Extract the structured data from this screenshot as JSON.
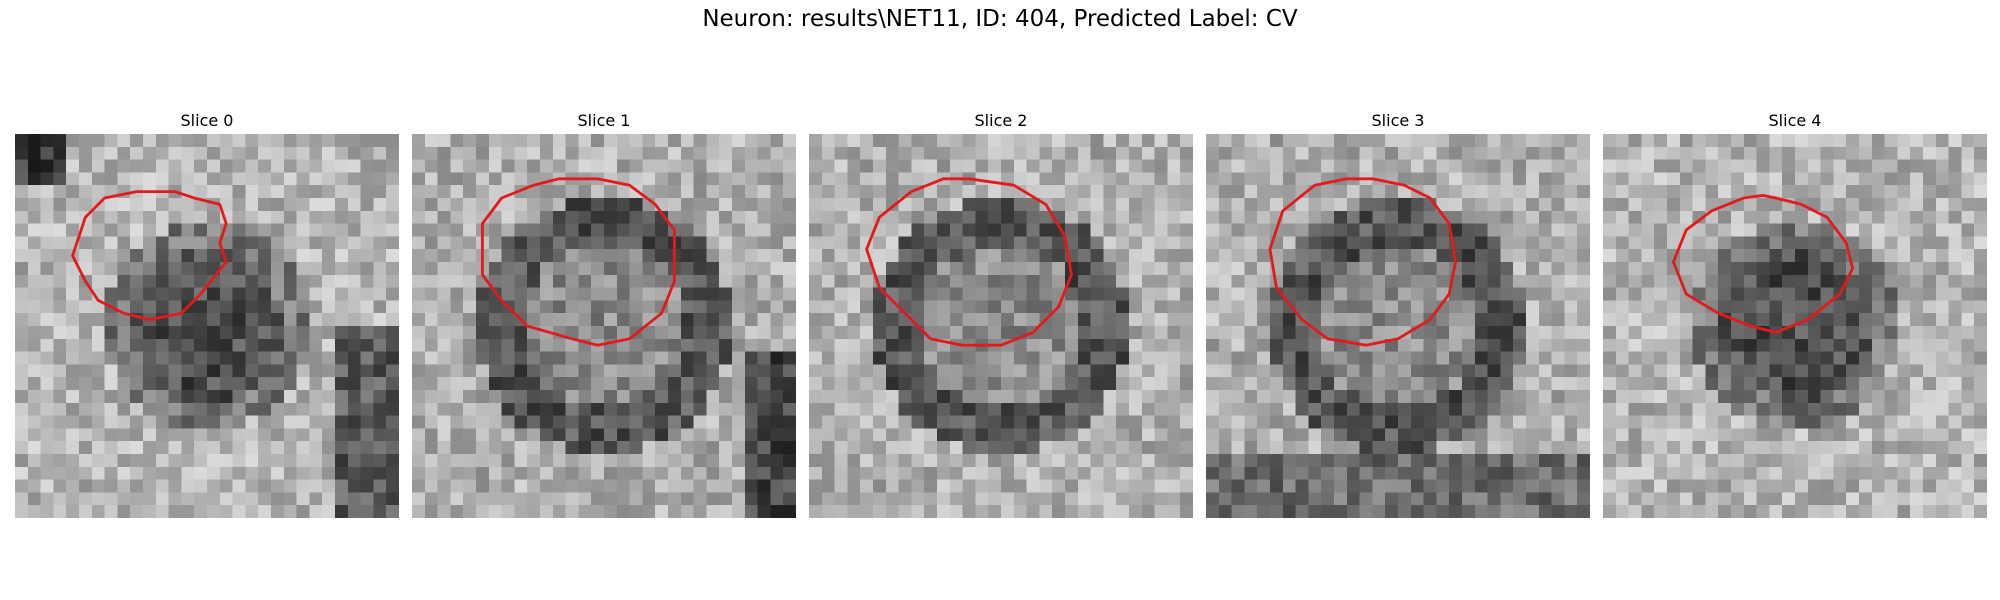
{
  "figure": {
    "title": "Neuron: results\\NET11, ID: 404, Predicted Label: CV"
  },
  "colors": {
    "contour": "#e31a1c",
    "background": "#ffffff"
  },
  "panels": [
    {
      "title": "Slice 0",
      "style": "dark-blob",
      "contour": [
        [
          12.5,
          4.5
        ],
        [
          14.0,
          5.0
        ],
        [
          16.0,
          5.5
        ],
        [
          16.5,
          7.0
        ],
        [
          16.0,
          8.5
        ],
        [
          16.5,
          10.0
        ],
        [
          14.5,
          12.5
        ],
        [
          13.0,
          14.0
        ],
        [
          10.5,
          14.5
        ],
        [
          8.5,
          14.0
        ],
        [
          6.5,
          13.0
        ],
        [
          5.5,
          11.5
        ],
        [
          4.5,
          9.5
        ],
        [
          5.5,
          6.5
        ],
        [
          7.0,
          5.0
        ],
        [
          9.5,
          4.5
        ]
      ]
    },
    {
      "title": "Slice 1",
      "style": "ring",
      "contour": [
        [
          14.5,
          3.5
        ],
        [
          17.0,
          4.0
        ],
        [
          19.0,
          5.5
        ],
        [
          20.5,
          7.5
        ],
        [
          20.5,
          11.5
        ],
        [
          19.5,
          14.0
        ],
        [
          17.0,
          16.0
        ],
        [
          14.5,
          16.5
        ],
        [
          12.5,
          16.0
        ],
        [
          9.0,
          15.0
        ],
        [
          7.0,
          13.0
        ],
        [
          5.5,
          11.0
        ],
        [
          5.5,
          7.0
        ],
        [
          7.0,
          5.0
        ],
        [
          9.5,
          4.0
        ],
        [
          11.5,
          3.5
        ]
      ]
    },
    {
      "title": "Slice 2",
      "style": "ring",
      "contour": [
        [
          12.5,
          3.5
        ],
        [
          16.0,
          4.0
        ],
        [
          18.5,
          5.5
        ],
        [
          20.0,
          8.0
        ],
        [
          20.5,
          11.0
        ],
        [
          19.5,
          13.5
        ],
        [
          17.5,
          15.5
        ],
        [
          15.0,
          16.5
        ],
        [
          12.0,
          16.5
        ],
        [
          9.5,
          16.0
        ],
        [
          7.5,
          14.0
        ],
        [
          5.5,
          12.0
        ],
        [
          4.5,
          9.0
        ],
        [
          5.5,
          6.5
        ],
        [
          8.0,
          4.5
        ],
        [
          10.5,
          3.5
        ]
      ]
    },
    {
      "title": "Slice 3",
      "style": "ring",
      "contour": [
        [
          13.0,
          3.5
        ],
        [
          15.5,
          4.0
        ],
        [
          17.5,
          5.0
        ],
        [
          19.0,
          7.0
        ],
        [
          19.5,
          10.0
        ],
        [
          19.0,
          12.5
        ],
        [
          17.5,
          14.5
        ],
        [
          15.0,
          16.0
        ],
        [
          12.5,
          16.5
        ],
        [
          9.5,
          16.0
        ],
        [
          7.5,
          14.5
        ],
        [
          5.5,
          12.0
        ],
        [
          5.0,
          9.0
        ],
        [
          6.0,
          6.0
        ],
        [
          8.5,
          4.0
        ],
        [
          11.0,
          3.5
        ]
      ]
    },
    {
      "title": "Slice 4",
      "style": "dark-blob",
      "contour": [
        [
          13.5,
          5.0
        ],
        [
          15.5,
          5.5
        ],
        [
          17.5,
          6.5
        ],
        [
          19.0,
          8.5
        ],
        [
          19.5,
          10.5
        ],
        [
          18.5,
          12.5
        ],
        [
          16.0,
          14.5
        ],
        [
          13.5,
          15.5
        ],
        [
          11.5,
          15.0
        ],
        [
          9.0,
          14.0
        ],
        [
          6.5,
          12.5
        ],
        [
          5.5,
          10.0
        ],
        [
          6.5,
          7.5
        ],
        [
          8.5,
          6.0
        ],
        [
          11.0,
          5.0
        ],
        [
          12.5,
          4.8
        ]
      ]
    }
  ]
}
